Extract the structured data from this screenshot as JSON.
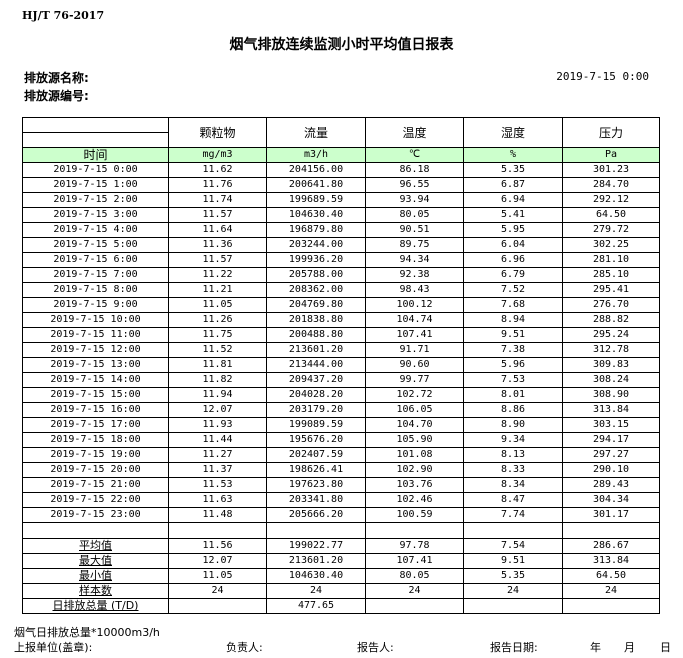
{
  "header": {
    "standard": "HJ/T  76-2017",
    "title": "烟气排放连续监测小时平均值日报表",
    "source_name_label": "排放源名称:",
    "source_code_label": "排放源编号:",
    "report_datetime": "2019-7-15 0:00"
  },
  "table": {
    "columns": [
      "颗粒物",
      "流量",
      "温度",
      "湿度",
      "压力"
    ],
    "time_label": "时间",
    "units": [
      "mg/m3",
      "m3/h",
      "℃",
      "%",
      "Pa"
    ],
    "rows": [
      [
        "2019-7-15 0:00",
        "11.62",
        "204156.00",
        "86.18",
        "5.35",
        "301.23"
      ],
      [
        "2019-7-15 1:00",
        "11.76",
        "200641.80",
        "96.55",
        "6.87",
        "284.70"
      ],
      [
        "2019-7-15 2:00",
        "11.74",
        "199689.59",
        "93.94",
        "6.94",
        "292.12"
      ],
      [
        "2019-7-15 3:00",
        "11.57",
        "104630.40",
        "80.05",
        "5.41",
        "64.50"
      ],
      [
        "2019-7-15 4:00",
        "11.64",
        "196879.80",
        "90.51",
        "5.95",
        "279.72"
      ],
      [
        "2019-7-15 5:00",
        "11.36",
        "203244.00",
        "89.75",
        "6.04",
        "302.25"
      ],
      [
        "2019-7-15 6:00",
        "11.57",
        "199936.20",
        "94.34",
        "6.96",
        "281.10"
      ],
      [
        "2019-7-15 7:00",
        "11.22",
        "205788.00",
        "92.38",
        "6.79",
        "285.10"
      ],
      [
        "2019-7-15 8:00",
        "11.21",
        "208362.00",
        "98.43",
        "7.52",
        "295.41"
      ],
      [
        "2019-7-15 9:00",
        "11.05",
        "204769.80",
        "100.12",
        "7.68",
        "276.70"
      ],
      [
        "2019-7-15 10:00",
        "11.26",
        "201838.80",
        "104.74",
        "8.94",
        "288.82"
      ],
      [
        "2019-7-15 11:00",
        "11.75",
        "200488.80",
        "107.41",
        "9.51",
        "295.24"
      ],
      [
        "2019-7-15 12:00",
        "11.52",
        "213601.20",
        "91.71",
        "7.38",
        "312.78"
      ],
      [
        "2019-7-15 13:00",
        "11.81",
        "213444.00",
        "90.60",
        "5.96",
        "309.83"
      ],
      [
        "2019-7-15 14:00",
        "11.82",
        "209437.20",
        "99.77",
        "7.53",
        "308.24"
      ],
      [
        "2019-7-15 15:00",
        "11.94",
        "204028.20",
        "102.72",
        "8.01",
        "308.90"
      ],
      [
        "2019-7-15 16:00",
        "12.07",
        "203179.20",
        "106.05",
        "8.86",
        "313.84"
      ],
      [
        "2019-7-15 17:00",
        "11.93",
        "199089.59",
        "104.70",
        "8.90",
        "303.15"
      ],
      [
        "2019-7-15 18:00",
        "11.44",
        "195676.20",
        "105.90",
        "9.34",
        "294.17"
      ],
      [
        "2019-7-15 19:00",
        "11.27",
        "202407.59",
        "101.08",
        "8.13",
        "297.27"
      ],
      [
        "2019-7-15 20:00",
        "11.37",
        "198626.41",
        "102.90",
        "8.33",
        "290.10"
      ],
      [
        "2019-7-15 21:00",
        "11.53",
        "197623.80",
        "103.76",
        "8.34",
        "289.43"
      ],
      [
        "2019-7-15 22:00",
        "11.63",
        "203341.80",
        "102.46",
        "8.47",
        "304.34"
      ],
      [
        "2019-7-15 23:00",
        "11.48",
        "205666.20",
        "100.59",
        "7.74",
        "301.17"
      ]
    ],
    "summary": [
      [
        "平均值",
        "11.56",
        "199022.77",
        "97.78",
        "7.54",
        "286.67"
      ],
      [
        "最大值",
        "12.07",
        "213601.20",
        "107.41",
        "9.51",
        "313.84"
      ],
      [
        "最小值",
        "11.05",
        "104630.40",
        "80.05",
        "5.35",
        "64.50"
      ],
      [
        "样本数",
        "24",
        "24",
        "24",
        "24",
        "24"
      ],
      [
        "日排放总量 (T/D)",
        "",
        "477.65",
        "",
        "",
        ""
      ]
    ]
  },
  "footer": {
    "note": "烟气日排放总量*10000m3/h",
    "unit_label": "上报单位(盖章):",
    "responsible_label": "负责人:",
    "reporter_label": "报告人:",
    "date_label": "报告日期:",
    "year": "年",
    "month": "月",
    "day": "日"
  }
}
